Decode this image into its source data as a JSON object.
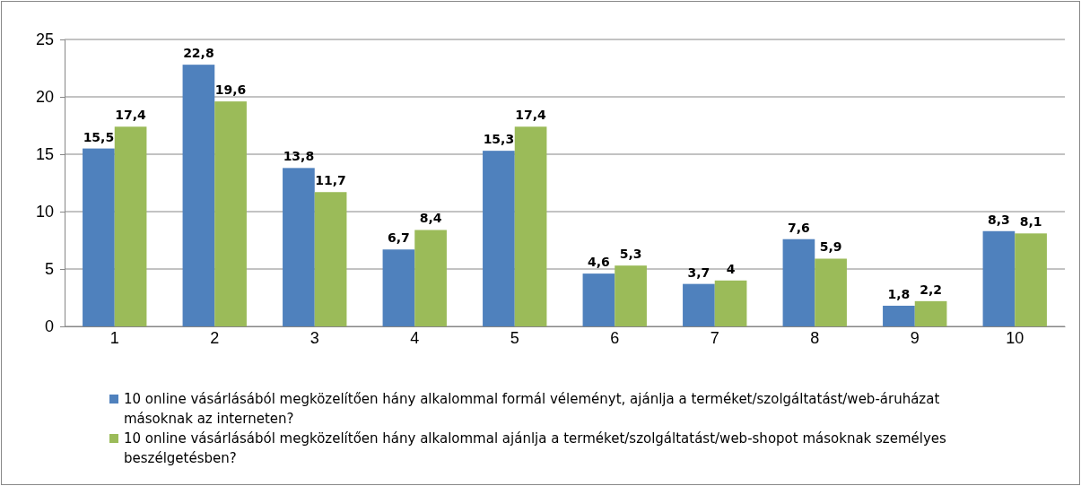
{
  "chart_data": {
    "type": "bar",
    "categories": [
      "1",
      "2",
      "3",
      "4",
      "5",
      "6",
      "7",
      "8",
      "9",
      "10"
    ],
    "series": [
      {
        "name": "10 online vásárlásából megközelítően hány alkalommal formál véleményt, ajánlja a terméket/szolgáltatást/web-áruházat másoknak az interneten?",
        "color": "#4f81bd",
        "values": [
          15.5,
          22.8,
          13.8,
          6.7,
          15.3,
          4.6,
          3.7,
          7.6,
          1.8,
          8.3
        ],
        "value_labels": [
          "15,5",
          "22,8",
          "13,8",
          "6,7",
          "15,3",
          "4,6",
          "3,7",
          "7,6",
          "1,8",
          "8,3"
        ]
      },
      {
        "name": "10 online vásárlásából megközelítően hány alkalommal ajánlja a terméket/szolgáltatást/web-shopot másoknak személyes beszélgetésben?",
        "color": "#9bbb59",
        "values": [
          17.4,
          19.6,
          11.7,
          8.4,
          17.4,
          5.3,
          4,
          5.9,
          2.2,
          8.1
        ],
        "value_labels": [
          "17,4",
          "19,6",
          "11,7",
          "8,4",
          "17,4",
          "5,3",
          "4",
          "5,9",
          "2,2",
          "8,1"
        ]
      }
    ],
    "ylim": [
      0,
      25
    ],
    "yticks": [
      0,
      5,
      10,
      15,
      20,
      25
    ],
    "grid": "y",
    "legend": "bottom"
  }
}
